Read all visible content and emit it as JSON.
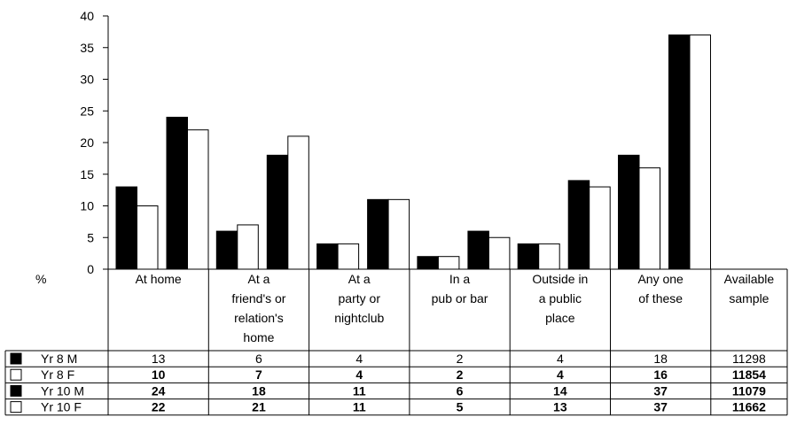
{
  "chart_data": {
    "type": "bar",
    "ylabel": "%",
    "ylim": [
      0,
      40
    ],
    "yticks": [
      0,
      5,
      10,
      15,
      20,
      25,
      30,
      35,
      40
    ],
    "categories": [
      [
        "At home"
      ],
      [
        "At a",
        "friend's or",
        "relation's",
        "home"
      ],
      [
        "At a",
        "party or",
        "nightclub"
      ],
      [
        "In a",
        "pub or bar"
      ],
      [
        "Outside in",
        "a public",
        "place"
      ],
      [
        "Any one",
        "of these"
      ]
    ],
    "extra_column": [
      "Available",
      "sample"
    ],
    "series": [
      {
        "name": "Yr 8 M",
        "color": "#000000",
        "values": [
          13,
          6,
          4,
          2,
          4,
          18
        ],
        "sample": "11298",
        "bold": false
      },
      {
        "name": "Yr 8 F",
        "color": "#ffffff",
        "values": [
          10,
          7,
          4,
          2,
          4,
          16
        ],
        "sample": "11854",
        "bold": true
      },
      {
        "name": "Yr 10 M",
        "color": "#000000",
        "values": [
          24,
          18,
          11,
          6,
          14,
          37
        ],
        "sample": "11079",
        "bold": true
      },
      {
        "name": "Yr 10 F",
        "color": "#ffffff",
        "values": [
          22,
          21,
          11,
          5,
          13,
          37
        ],
        "sample": "11662",
        "bold": true
      }
    ],
    "grid": false,
    "legend": "table-left"
  }
}
